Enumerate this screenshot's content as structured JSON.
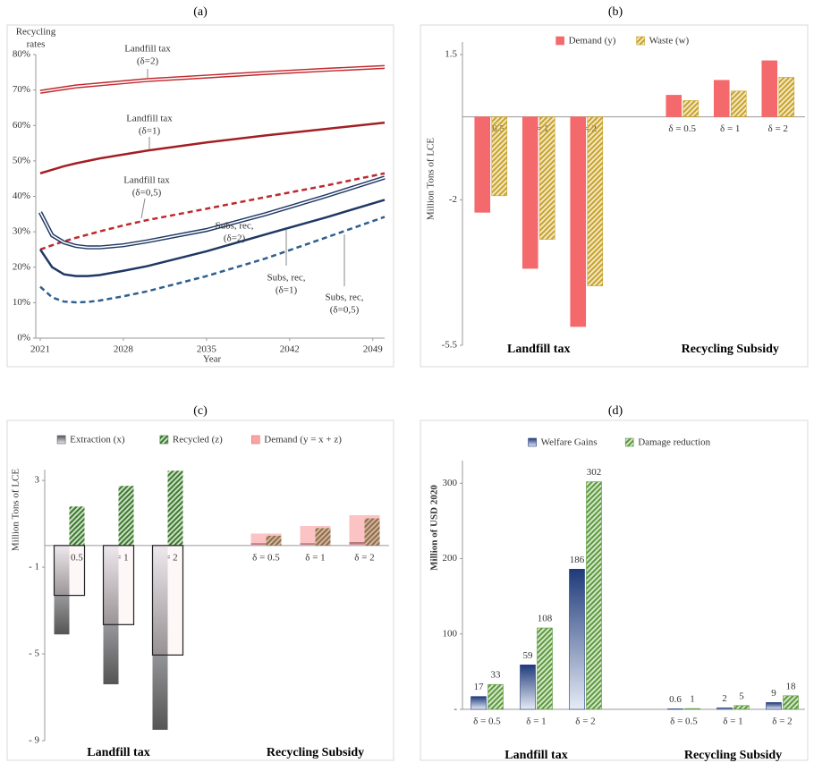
{
  "chart_data": [
    {
      "type": "line",
      "title": "(a)",
      "ylabel": [
        "Recycling",
        "rates"
      ],
      "xlabel": "Year",
      "x": [
        2021,
        2022,
        2023,
        2024,
        2025,
        2026,
        2028,
        2030,
        2035,
        2040,
        2045,
        2050
      ],
      "xlim": [
        2021,
        2050
      ],
      "xticks": [
        2021,
        2028,
        2035,
        2042,
        2049
      ],
      "ylim": [
        0,
        80
      ],
      "yticks": [
        {
          "value": 0,
          "label": "0%"
        },
        {
          "value": 10,
          "label": "10%"
        },
        {
          "value": 20,
          "label": "20%"
        },
        {
          "value": 30,
          "label": "30%"
        },
        {
          "value": 40,
          "label": "40%"
        },
        {
          "value": 50,
          "label": "50%"
        },
        {
          "value": 60,
          "label": "60%"
        },
        {
          "value": 70,
          "label": "70%"
        },
        {
          "value": 80,
          "label": "80%"
        }
      ],
      "series": [
        {
          "color": "#c0282d",
          "style": "double",
          "values": [
            69.5,
            70,
            70.5,
            71,
            71.3,
            71.6,
            72.2,
            72.8,
            73.8,
            74.8,
            75.7,
            76.5
          ]
        },
        {
          "color": "#a31f24",
          "style": "solid",
          "values": [
            46.5,
            47.5,
            48.5,
            49.3,
            50,
            50.7,
            51.8,
            52.9,
            55.2,
            57.2,
            59,
            60.8
          ]
        },
        {
          "color": "#c0282d",
          "style": "dashed",
          "values": [
            25,
            26.2,
            27.3,
            28.3,
            29.2,
            30.1,
            31.8,
            33.3,
            36.5,
            39.8,
            43,
            46.5
          ]
        },
        {
          "color": "#1f3864",
          "style": "double",
          "values": [
            35.5,
            29,
            27,
            26,
            25.6,
            25.6,
            26.2,
            27.3,
            30.5,
            35,
            40,
            45.3
          ]
        },
        {
          "color": "#1f3864",
          "style": "solid",
          "values": [
            25,
            20,
            18,
            17.5,
            17.5,
            17.8,
            19,
            20.3,
            24.5,
            29.3,
            34,
            39
          ]
        },
        {
          "color": "#2e5f8f",
          "style": "dashed",
          "values": [
            14.5,
            11.5,
            10.3,
            10.1,
            10.2,
            10.6,
            11.8,
            13.2,
            17.5,
            22.5,
            28.3,
            34.2
          ]
        }
      ],
      "annotations": [
        [
          "Landfill tax",
          "(δ=2)"
        ],
        [
          "Landfill tax",
          "(δ=1)"
        ],
        [
          "Landfill tax",
          "(δ=0,5)"
        ],
        [
          "Subs, rec,",
          "(δ=2)"
        ],
        [
          "Subs, rec,",
          "(δ=1)"
        ],
        [
          "Subs, rec,",
          "(δ=0,5)"
        ]
      ]
    },
    {
      "type": "bar",
      "title": "(b)",
      "ylabel": "Million Tons of LCE",
      "categories": [
        "δ = 0.5",
        "δ = 1",
        "δ = 2",
        null,
        "δ = 0.5",
        "δ = 1",
        "δ = 2"
      ],
      "groups": [
        "Landfill tax",
        "Recycling Subsidy"
      ],
      "ylim": [
        -5.5,
        1.8
      ],
      "yticks": [
        1.5,
        -2,
        -5.5
      ],
      "legend": "top",
      "series": [
        {
          "name": "Demand (y)",
          "color": "#f4696b",
          "fill": "solid",
          "values": [
            -2.3,
            -3.65,
            -5.05,
            null,
            0.52,
            0.88,
            1.35
          ]
        },
        {
          "name": "Waste (w)",
          "color": "#c9a227",
          "fill": "hatch",
          "values": [
            -1.9,
            -2.95,
            -4.07,
            null,
            0.39,
            0.62,
            0.95
          ]
        }
      ]
    },
    {
      "type": "overlap",
      "title": "(c)",
      "ylabel": "Million Tons of LCE",
      "categories": [
        "δ = 0.5",
        "δ = 1",
        "δ = 2",
        null,
        "δ = 0.5",
        "δ = 1",
        "δ = 2"
      ],
      "groups": [
        "Landfill tax",
        "Recycling Subsidy"
      ],
      "ylim": [
        -9,
        3.5
      ],
      "yticks": [
        3,
        {
          "value": -1,
          "label": "- 1"
        },
        {
          "value": -5,
          "label": "- 5"
        },
        {
          "value": -9,
          "label": "- 9"
        }
      ],
      "legend": "top",
      "series": [
        {
          "name": "Extraction (x)",
          "color": "#555555",
          "fill": "gradient",
          "values": [
            -4.1,
            -6.4,
            -8.5,
            null,
            0.1,
            0.1,
            0.15
          ]
        },
        {
          "name": "Recycled (z)",
          "color": "#3a7a2a",
          "fill": "hatch",
          "values": [
            1.8,
            2.75,
            3.45,
            null,
            0.45,
            0.8,
            1.25
          ]
        },
        {
          "name": "Demand (y = x + z)",
          "color": "#f4696b",
          "fill": "translucent",
          "values": [
            -2.3,
            -3.65,
            -5.05,
            null,
            0.55,
            0.9,
            1.4
          ]
        }
      ]
    },
    {
      "type": "bar",
      "title": "(d)",
      "ylabel": "Million of USD 2020",
      "categories": [
        "δ = 0.5",
        "δ = 1",
        "δ = 2",
        null,
        "δ = 0.5",
        "δ = 1",
        "δ = 2"
      ],
      "groups": [
        "Landfill tax",
        "Recycling Subsidy"
      ],
      "ylim": [
        0,
        330
      ],
      "yticks": [
        {
          "value": 0,
          "label": "-"
        },
        100,
        200,
        300
      ],
      "legend": "top",
      "data_labels": true,
      "series": [
        {
          "name": "Welfare Gains",
          "color": "#1f3a7a",
          "fill": "gradient",
          "values": [
            17,
            59,
            186,
            null,
            0.6,
            2,
            9
          ]
        },
        {
          "name": "Damage reduction",
          "color": "#5a9a3a",
          "fill": "hatch",
          "values": [
            33,
            108,
            302,
            null,
            1,
            5,
            18
          ]
        }
      ]
    }
  ]
}
